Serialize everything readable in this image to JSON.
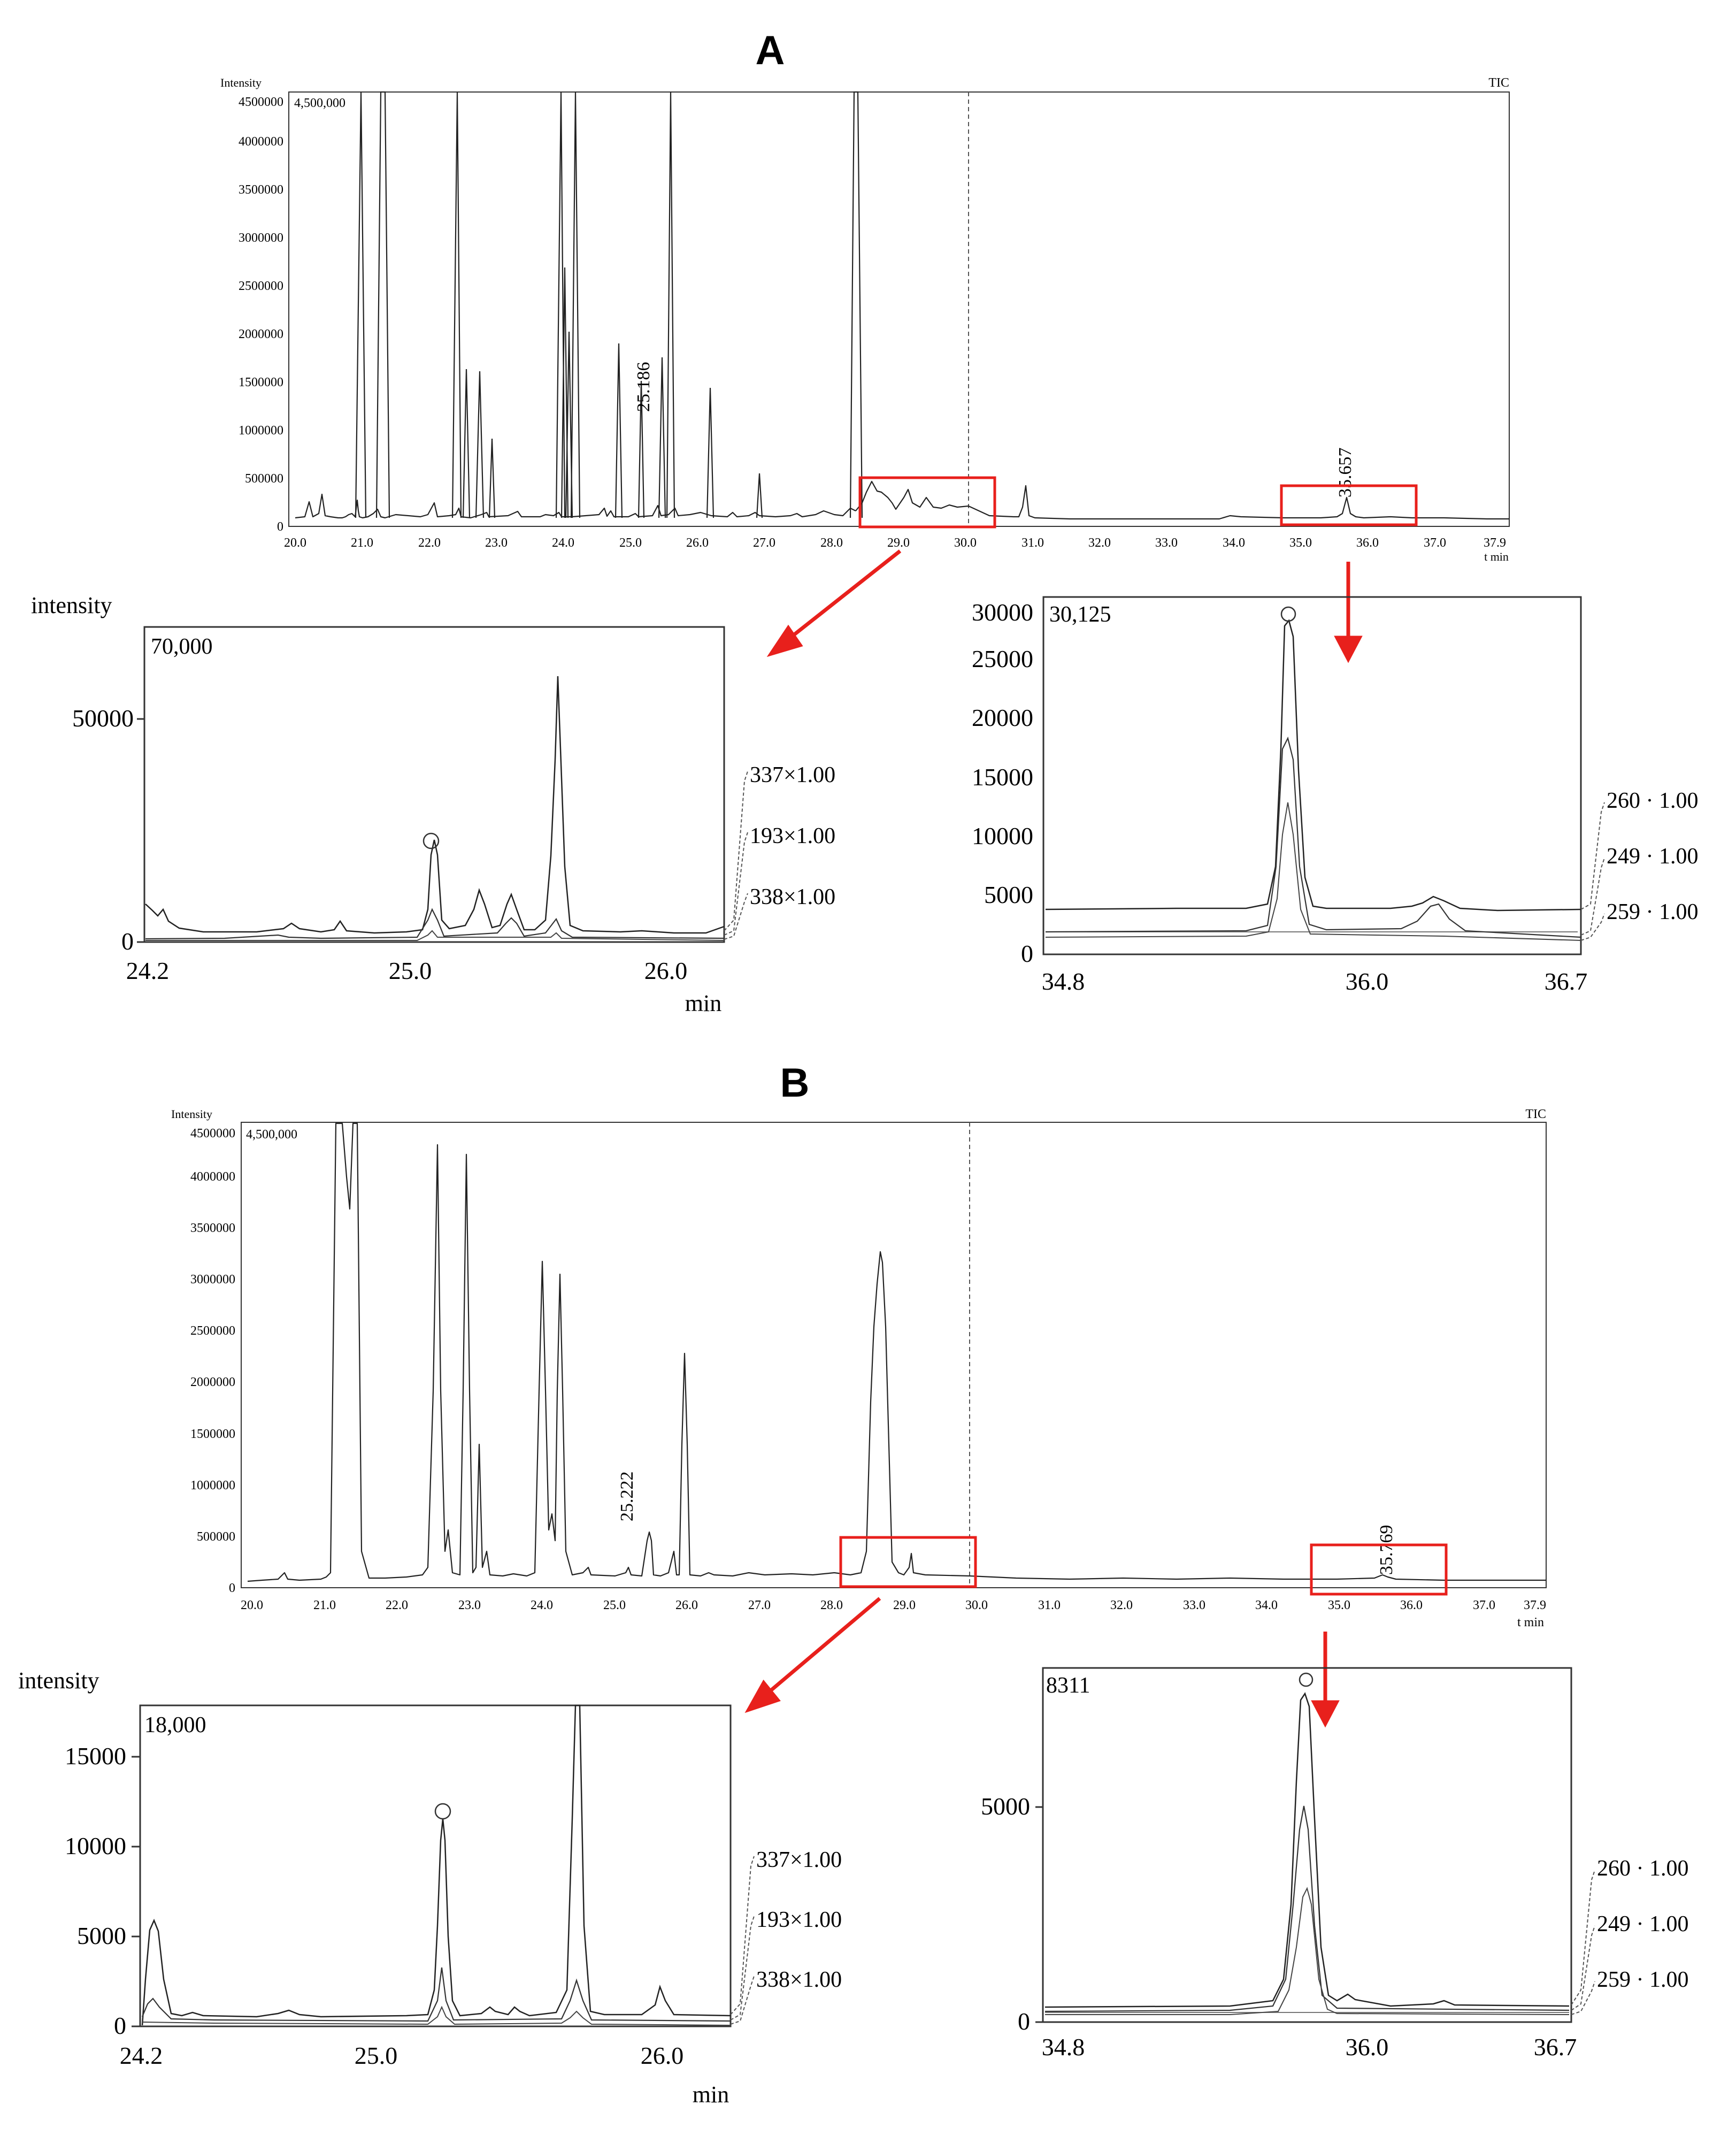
{
  "panels": [
    {
      "letter": "A",
      "tic": {
        "ylabel": "Intensity",
        "series_label": "TIC",
        "scale_label": "4,500,000",
        "x_unit": "t min",
        "yticks": [
          "0",
          "500000",
          "1000000",
          "1500000",
          "2000000",
          "2500000",
          "3000000",
          "3500000",
          "4000000",
          "4500000"
        ],
        "xticks": [
          "20.0",
          "21.0",
          "22.0",
          "23.0",
          "24.0",
          "25.0",
          "26.0",
          "27.0",
          "28.0",
          "29.0",
          "30.0",
          "31.0",
          "32.0",
          "33.0",
          "34.0",
          "35.0",
          "36.0",
          "37.0",
          "37.9"
        ],
        "peak_labels": [
          "25.186",
          "35.657"
        ]
      },
      "zoom_left": {
        "ylabel": "intensity",
        "scale_label": "70,000",
        "xlabel": "min",
        "yticks": [
          "0",
          "50000"
        ],
        "xticks": [
          "24.2",
          "25.0",
          "26.0"
        ],
        "legend": [
          "337×1.00",
          "193×1.00",
          "338×1.00"
        ]
      },
      "zoom_right": {
        "scale_label": "30,125",
        "yticks": [
          "0",
          "5000",
          "10000",
          "15000",
          "20000",
          "25000",
          "30000"
        ],
        "xticks": [
          "34.8",
          "36.0",
          "36.7"
        ],
        "legend": [
          "260 · 1.00",
          "249 · 1.00",
          "259 · 1.00"
        ]
      }
    },
    {
      "letter": "B",
      "tic": {
        "ylabel": "Intensity",
        "series_label": "TIC",
        "scale_label": "4,500,000",
        "x_unit": "t min",
        "yticks": [
          "0",
          "500000",
          "1000000",
          "1500000",
          "2000000",
          "2500000",
          "3000000",
          "3500000",
          "4000000",
          "4500000"
        ],
        "xticks": [
          "20.0",
          "21.0",
          "22.0",
          "23.0",
          "24.0",
          "25.0",
          "26.0",
          "27.0",
          "28.0",
          "29.0",
          "30.0",
          "31.0",
          "32.0",
          "33.0",
          "34.0",
          "35.0",
          "36.0",
          "37.0",
          "37.9"
        ],
        "peak_labels": [
          "25.222",
          "35.769"
        ]
      },
      "zoom_left": {
        "ylabel": "intensity",
        "scale_label": "18,000",
        "xlabel": "min",
        "yticks": [
          "0",
          "5000",
          "10000",
          "15000"
        ],
        "xticks": [
          "24.2",
          "25.0",
          "26.0"
        ],
        "legend": [
          "337×1.00",
          "193×1.00",
          "338×1.00"
        ]
      },
      "zoom_right": {
        "scale_label": "8311",
        "yticks": [
          "0",
          "5000"
        ],
        "xticks": [
          "34.8",
          "36.0",
          "36.7"
        ],
        "legend": [
          "260 · 1.00",
          "249 · 1.00",
          "259 · 1.00"
        ]
      }
    }
  ],
  "colors": {
    "trace": "#222222",
    "highlight": "#e8201c"
  },
  "chart_data": [
    {
      "panel": "A",
      "type": "line",
      "series_label": "TIC",
      "ylabel": "Intensity",
      "xlabel": "t min",
      "xlim": [
        20.0,
        37.9
      ],
      "ylim": [
        0,
        4500000
      ],
      "peaks": [
        {
          "x": 20.4,
          "y": 640000
        },
        {
          "x": 21.05,
          "y": 4500000
        },
        {
          "x": 21.3,
          "y": 4500000
        },
        {
          "x": 22.45,
          "y": 4500000
        },
        {
          "x": 22.6,
          "y": 1650000
        },
        {
          "x": 22.78,
          "y": 1600000
        },
        {
          "x": 22.98,
          "y": 900000
        },
        {
          "x": 24.0,
          "y": 4500000
        },
        {
          "x": 24.2,
          "y": 4500000
        },
        {
          "x": 24.85,
          "y": 1900000
        },
        {
          "x": 25.186,
          "y": 1400000
        },
        {
          "x": 25.5,
          "y": 1750000
        },
        {
          "x": 25.63,
          "y": 4500000
        },
        {
          "x": 26.22,
          "y": 1400000
        },
        {
          "x": 26.95,
          "y": 500000
        },
        {
          "x": 28.35,
          "y": 4500000
        },
        {
          "x": 30.8,
          "y": 440000
        },
        {
          "x": 35.657,
          "y": 390000
        }
      ]
    },
    {
      "panel": "A",
      "type": "line",
      "xlabel": "min",
      "ylabel": "intensity",
      "xlim": [
        24.2,
        26.3
      ],
      "ylim": [
        0,
        70000
      ],
      "series": [
        {
          "name": "337×1.00",
          "x": [
            24.2,
            24.95,
            25.15,
            25.35,
            25.53,
            25.75,
            26.3
          ],
          "y": [
            8000,
            2500,
            22000,
            14000,
            11000,
            60000,
            3000
          ]
        },
        {
          "name": "193×1.00",
          "x": [
            24.2,
            25.15,
            25.53,
            25.75,
            26.3
          ],
          "y": [
            1000,
            7000,
            5000,
            7000,
            1000
          ]
        },
        {
          "name": "338×1.00",
          "x": [
            24.2,
            25.15,
            25.75,
            26.3
          ],
          "y": [
            500,
            3000,
            3000,
            500
          ]
        }
      ]
    },
    {
      "panel": "A",
      "type": "line",
      "xlim": [
        34.8,
        36.7
      ],
      "ylim": [
        0,
        30125
      ],
      "series": [
        {
          "name": "260 · 1.00",
          "x": [
            34.8,
            35.65,
            36.3,
            36.7
          ],
          "y": [
            3700,
            29500,
            4000,
            3600
          ]
        },
        {
          "name": "249 · 1.00",
          "x": [
            34.8,
            35.65,
            36.3,
            36.7
          ],
          "y": [
            2000,
            18000,
            3000,
            1600
          ]
        },
        {
          "name": "259 · 1.00",
          "x": [
            34.8,
            35.65,
            36.7
          ],
          "y": [
            1600,
            13000,
            1500
          ]
        }
      ]
    },
    {
      "panel": "B",
      "type": "line",
      "series_label": "TIC",
      "ylabel": "Intensity",
      "xlabel": "t min",
      "xlim": [
        20.0,
        37.9
      ],
      "ylim": [
        0,
        4500000
      ],
      "peaks": [
        {
          "x": 21.2,
          "y": 4500000
        },
        {
          "x": 21.5,
          "y": 4500000
        },
        {
          "x": 22.6,
          "y": 3750000
        },
        {
          "x": 22.88,
          "y": 3680000
        },
        {
          "x": 23.08,
          "y": 1150000
        },
        {
          "x": 24.05,
          "y": 2600000
        },
        {
          "x": 24.28,
          "y": 2480000
        },
        {
          "x": 25.222,
          "y": 1000000
        },
        {
          "x": 25.68,
          "y": 2280000
        },
        {
          "x": 28.55,
          "y": 3200000
        },
        {
          "x": 29.15,
          "y": 230000
        },
        {
          "x": 35.769,
          "y": 80000
        }
      ]
    },
    {
      "panel": "B",
      "type": "line",
      "xlabel": "min",
      "ylabel": "intensity",
      "xlim": [
        24.2,
        26.25
      ],
      "ylim": [
        0,
        18000
      ],
      "series": [
        {
          "name": "337×1.00",
          "x": [
            24.2,
            24.4,
            25.22,
            25.68,
            25.98,
            26.25
          ],
          "y": [
            6300,
            700,
            12000,
            18000,
            2400,
            500
          ]
        },
        {
          "name": "193×1.00",
          "x": [
            24.2,
            25.22,
            25.68,
            26.25
          ],
          "y": [
            1600,
            3300,
            2600,
            300
          ]
        },
        {
          "name": "338×1.00",
          "x": [
            24.2,
            25.22,
            25.68,
            26.25
          ],
          "y": [
            400,
            1200,
            1200,
            200
          ]
        }
      ]
    },
    {
      "panel": "B",
      "type": "line",
      "xlim": [
        34.8,
        36.7
      ],
      "ylim": [
        0,
        8311
      ],
      "series": [
        {
          "name": "260 · 1.00",
          "x": [
            34.8,
            35.77,
            36.7
          ],
          "y": [
            300,
            8000,
            250
          ]
        },
        {
          "name": "249 · 1.00",
          "x": [
            34.8,
            35.77,
            36.7
          ],
          "y": [
            200,
            5100,
            200
          ]
        },
        {
          "name": "259 · 1.00",
          "x": [
            34.8,
            35.77,
            36.7
          ],
          "y": [
            100,
            3000,
            100
          ]
        }
      ]
    }
  ]
}
